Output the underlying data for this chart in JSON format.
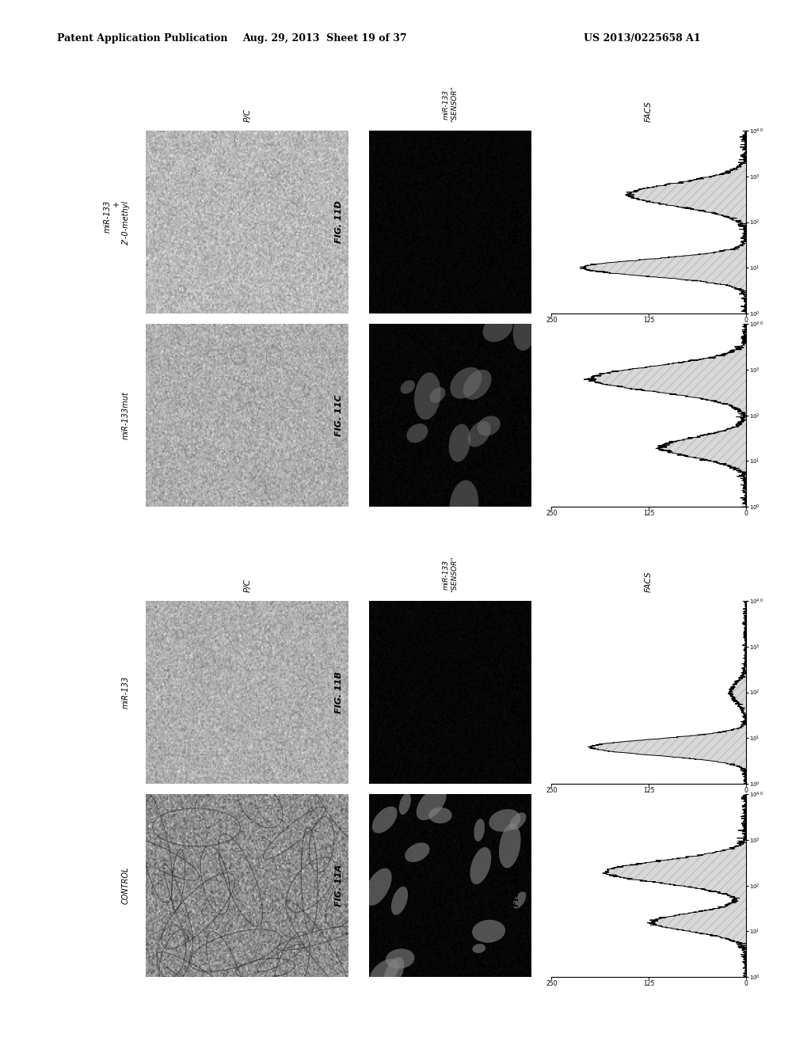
{
  "header_left": "Patent Application Publication",
  "header_mid": "Aug. 29, 2013  Sheet 19 of 37",
  "header_right": "US 2013/0225658 A1",
  "header_fontsize": 9,
  "background_color": "#ffffff",
  "panels": [
    {
      "id": "A",
      "fig_label": "FIG. 11A",
      "row_label": "CONTROL",
      "pc_type": "control_pc",
      "fl_type": "high_fl",
      "facs_type": "control"
    },
    {
      "id": "B",
      "fig_label": "FIG. 11B",
      "row_label": "miR-133",
      "pc_type": "mir133_pc",
      "fl_type": "low_fl",
      "facs_type": "mir133"
    },
    {
      "id": "C",
      "fig_label": "FIG. 11C",
      "row_label": "miR-133mut",
      "pc_type": "mut_pc",
      "fl_type": "med_fl",
      "facs_type": "mir133mut"
    },
    {
      "id": "D",
      "fig_label": "FIG. 11D",
      "row_label": "miR-133\n+\n2'-0-methyl",
      "pc_type": "methyl_pc",
      "fl_type": "vlow_fl",
      "facs_type": "mir133_2o"
    }
  ],
  "col_label_pc": "P/C",
  "col_label_sensor_top": "miR-133\n\"SENSOR\"",
  "col_label_facs": "FACS"
}
